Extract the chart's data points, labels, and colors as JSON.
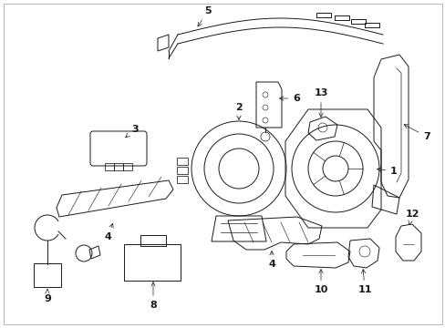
{
  "background_color": "#ffffff",
  "line_color": "#1a1a1a",
  "fig_width": 4.89,
  "fig_height": 3.6,
  "dpi": 100,
  "label_fontsize": 8,
  "label_fontweight": "bold",
  "arrow_lw": 0.5,
  "draw_lw": 0.7
}
